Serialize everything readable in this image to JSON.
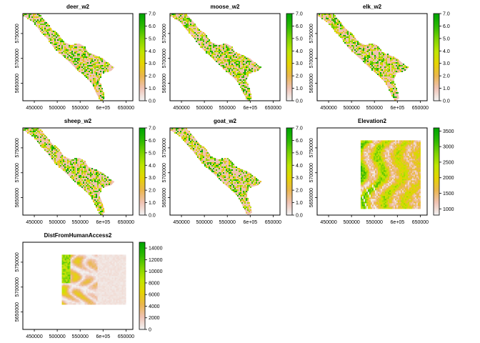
{
  "figure": {
    "background": "#ffffff"
  },
  "colors": {
    "terrain_ramp": [
      "#f2f2f2",
      "#efc2b3",
      "#eab64e",
      "#e5d400",
      "#bfe600",
      "#7fd400",
      "#2fba00",
      "#00a600"
    ]
  },
  "chart_data": [
    {
      "type": "heatmap",
      "title": "deer_w2",
      "raster": "ridge_rivers",
      "xticks": [
        "450000",
        "500000",
        "550000",
        "6e+05",
        "650000"
      ],
      "yticks": [
        "5650000",
        "5700000",
        "5750000"
      ],
      "legend_ticks": [
        "0.0",
        "1.0",
        "2.0",
        "3.0",
        "4.0",
        "5.0",
        "6.0",
        "7.0"
      ],
      "legend_range": [
        0,
        7
      ],
      "xlim": [
        425000,
        665000
      ],
      "ylim": [
        5615000,
        5790000
      ]
    },
    {
      "type": "heatmap",
      "title": "moose_w2",
      "raster": "ridge_rivers",
      "xticks": [
        "450000",
        "500000",
        "550000",
        "6e+05",
        "650000"
      ],
      "yticks": [
        "5650000",
        "5700000",
        "5750000"
      ],
      "legend_ticks": [
        "0.0",
        "1.0",
        "2.0",
        "3.0",
        "4.0",
        "5.0",
        "6.0",
        "7.0"
      ],
      "legend_range": [
        0,
        7
      ],
      "xlim": [
        425000,
        665000
      ],
      "ylim": [
        5615000,
        5790000
      ]
    },
    {
      "type": "heatmap",
      "title": "elk_w2",
      "raster": "ridge_rivers",
      "xticks": [
        "450000",
        "500000",
        "550000",
        "6e+05",
        "650000"
      ],
      "yticks": [
        "5650000",
        "5700000",
        "5750000"
      ],
      "legend_ticks": [
        "0.0",
        "1.0",
        "2.0",
        "3.0",
        "4.0",
        "5.0",
        "6.0",
        "7.0"
      ],
      "legend_range": [
        0,
        7
      ],
      "xlim": [
        425000,
        665000
      ],
      "ylim": [
        5615000,
        5790000
      ]
    },
    {
      "type": "heatmap",
      "title": "sheep_w2",
      "raster": "ridge_rivers",
      "xticks": [
        "450000",
        "500000",
        "550000",
        "6e+05",
        "650000"
      ],
      "yticks": [
        "5650000",
        "5700000",
        "5750000"
      ],
      "legend_ticks": [
        "0.0",
        "1.0",
        "2.0",
        "3.0",
        "4.0",
        "5.0",
        "6.0",
        "7.0"
      ],
      "legend_range": [
        0,
        7
      ],
      "xlim": [
        425000,
        665000
      ],
      "ylim": [
        5615000,
        5790000
      ]
    },
    {
      "type": "heatmap",
      "title": "goat_w2",
      "raster": "ridge_rivers",
      "xticks": [
        "450000",
        "500000",
        "550000",
        "6e+05",
        "650000"
      ],
      "yticks": [
        "5650000",
        "5700000",
        "5750000"
      ],
      "legend_ticks": [
        "0.0",
        "1.0",
        "2.0",
        "3.0",
        "4.0",
        "5.0",
        "6.0",
        "7.0"
      ],
      "legend_range": [
        0,
        7
      ],
      "xlim": [
        425000,
        665000
      ],
      "ylim": [
        5615000,
        5790000
      ]
    },
    {
      "type": "heatmap",
      "title": "Elevation2",
      "raster": "elevation_block",
      "xticks": [
        "450000",
        "500000",
        "550000",
        "6e+05",
        "650000"
      ],
      "yticks": [
        "5650000",
        "5700000",
        "5750000"
      ],
      "legend_ticks": [
        "1000",
        "1500",
        "2000",
        "2500",
        "3000",
        "3500"
      ],
      "legend_range": [
        800,
        3600
      ],
      "xlim": [
        425000,
        665000
      ],
      "ylim": [
        5615000,
        5790000
      ],
      "extent": {
        "x": [
          520000,
          650000
        ],
        "y": [
          5630000,
          5765000
        ]
      }
    },
    {
      "type": "heatmap",
      "title": "DistFromHumanAccess2",
      "raster": "distance_block",
      "xticks": [
        "450000",
        "500000",
        "550000",
        "6e+05",
        "650000"
      ],
      "yticks": [
        "5650000",
        "5700000",
        "5750000"
      ],
      "legend_ticks": [
        "0",
        "2000",
        "4000",
        "6000",
        "8000",
        "10000",
        "12000",
        "14000"
      ],
      "legend_range": [
        0,
        15000
      ],
      "xlim": [
        425000,
        665000
      ],
      "ylim": [
        5615000,
        5790000
      ],
      "extent": {
        "x": [
          510000,
          650000
        ],
        "y": [
          5665000,
          5765000
        ]
      }
    }
  ]
}
